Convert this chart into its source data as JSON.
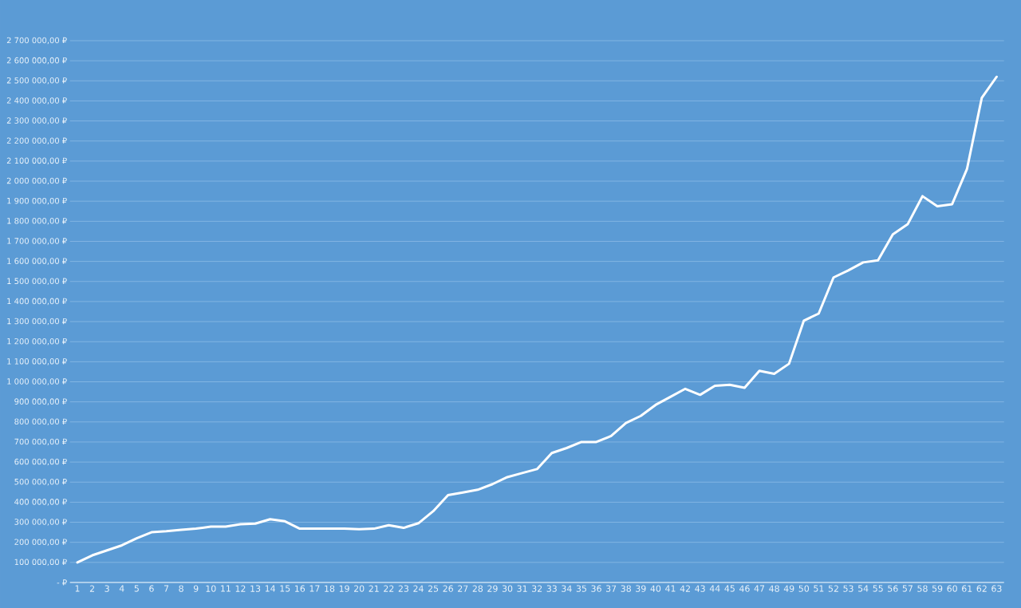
{
  "chart_data": {
    "type": "line",
    "categories": [
      "1",
      "2",
      "3",
      "4",
      "5",
      "6",
      "7",
      "8",
      "9",
      "10",
      "11",
      "12",
      "13",
      "14",
      "15",
      "16",
      "17",
      "18",
      "19",
      "20",
      "21",
      "22",
      "23",
      "24",
      "25",
      "26",
      "27",
      "28",
      "29",
      "30",
      "31",
      "32",
      "33",
      "34",
      "35",
      "36",
      "37",
      "38",
      "39",
      "40",
      "41",
      "42",
      "43",
      "44",
      "45",
      "46",
      "47",
      "48",
      "49",
      "50",
      "51",
      "52",
      "53",
      "54",
      "55",
      "56",
      "57",
      "58",
      "59",
      "60",
      "61",
      "62",
      "63"
    ],
    "series": [
      {
        "color": "#ffffff",
        "values": [
          100000,
          135000,
          160000,
          185000,
          220000,
          250000,
          255000,
          262000,
          268000,
          278000,
          278000,
          290000,
          293000,
          315000,
          305000,
          268000,
          268000,
          268000,
          268000,
          265000,
          268000,
          285000,
          272000,
          295000,
          355000,
          435000,
          448000,
          462000,
          490000,
          525000,
          545000,
          565000,
          645000,
          670000,
          700000,
          700000,
          730000,
          795000,
          830000,
          885000,
          925000,
          965000,
          935000,
          980000,
          985000,
          970000,
          1055000,
          1040000,
          1090000,
          1305000,
          1340000,
          1520000,
          1555000,
          1595000,
          1605000,
          1735000,
          1785000,
          1925000,
          1875000,
          1885000,
          2060000,
          2415000,
          2520000
        ]
      }
    ],
    "ylim": [
      0,
      2700000
    ],
    "yticks": [
      {
        "value": 0,
        "label": "-   ₽"
      },
      {
        "value": 100000,
        "label": "100 000,00 ₽"
      },
      {
        "value": 200000,
        "label": "200 000,00 ₽"
      },
      {
        "value": 300000,
        "label": "300 000,00 ₽"
      },
      {
        "value": 400000,
        "label": "400 000,00 ₽"
      },
      {
        "value": 500000,
        "label": "500 000,00 ₽"
      },
      {
        "value": 600000,
        "label": "600 000,00 ₽"
      },
      {
        "value": 700000,
        "label": "700 000,00 ₽"
      },
      {
        "value": 800000,
        "label": "800 000,00 ₽"
      },
      {
        "value": 900000,
        "label": "900 000,00 ₽"
      },
      {
        "value": 1000000,
        "label": "1 000 000,00 ₽"
      },
      {
        "value": 1100000,
        "label": "1 100 000,00 ₽"
      },
      {
        "value": 1200000,
        "label": "1 200 000,00 ₽"
      },
      {
        "value": 1300000,
        "label": "1 300 000,00 ₽"
      },
      {
        "value": 1400000,
        "label": "1 400 000,00 ₽"
      },
      {
        "value": 1500000,
        "label": "1 500 000,00 ₽"
      },
      {
        "value": 1600000,
        "label": "1 600 000,00 ₽"
      },
      {
        "value": 1700000,
        "label": "1 700 000,00 ₽"
      },
      {
        "value": 1800000,
        "label": "1 800 000,00 ₽"
      },
      {
        "value": 1900000,
        "label": "1 900 000,00 ₽"
      },
      {
        "value": 2000000,
        "label": "2 000 000,00 ₽"
      },
      {
        "value": 2100000,
        "label": "2 100 000,00 ₽"
      },
      {
        "value": 2200000,
        "label": "2 200 000,00 ₽"
      },
      {
        "value": 2300000,
        "label": "2 300 000,00 ₽"
      },
      {
        "value": 2400000,
        "label": "2 400 000,00 ₽"
      },
      {
        "value": 2500000,
        "label": "2 500 000,00 ₽"
      },
      {
        "value": 2600000,
        "label": "2 600 000,00 ₽"
      },
      {
        "value": 2700000,
        "label": "2 700 000,00 ₽"
      }
    ],
    "grid": "y",
    "marker": "none",
    "line_style": "solid"
  }
}
